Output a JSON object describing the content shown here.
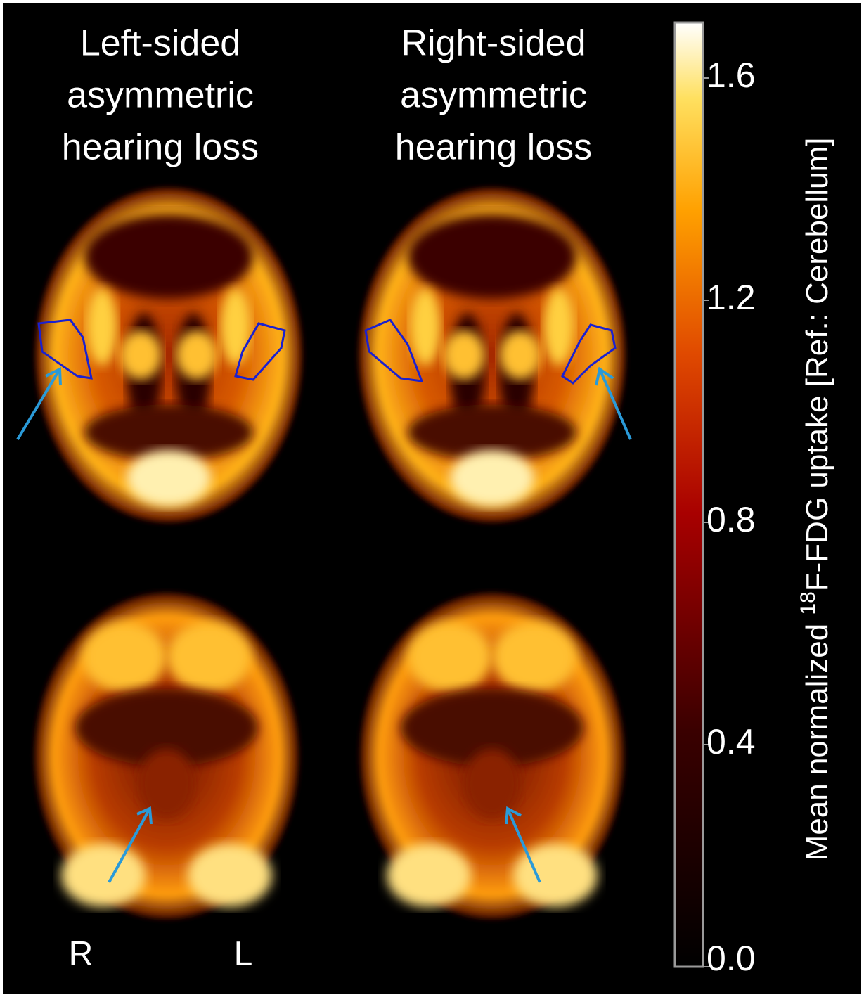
{
  "figure": {
    "columns": [
      {
        "title": [
          "Left-sided",
          "asymmetric",
          "hearing loss"
        ]
      },
      {
        "title": [
          "Right-sided",
          "asymmetric",
          "hearing loss"
        ]
      }
    ],
    "orientation": {
      "right": "R",
      "left": "L"
    },
    "colorbar": {
      "label_prefix": "Mean normalized ",
      "label_sup": "18",
      "label_suffix": "F-FDG uptake [Ref.: Cerebellum]",
      "lim": [
        0,
        1.7
      ],
      "ticks": [
        {
          "value": 0,
          "label": "0.0"
        },
        0.4,
        0.8,
        1.2,
        1.6
      ]
    }
  }
}
